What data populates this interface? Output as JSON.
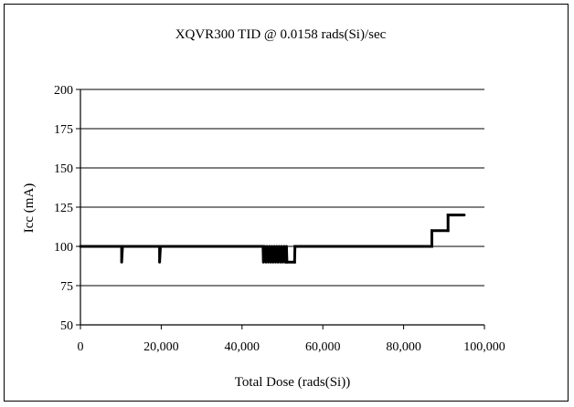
{
  "chart_data": {
    "type": "line",
    "title": "XQVR300 TID @ 0.0158 rads(Si)/sec",
    "xlabel": "Total Dose (rads(Si))",
    "ylabel": "Icc (mA)",
    "xlim": [
      0,
      100000
    ],
    "ylim": [
      50,
      200
    ],
    "x_ticks": [
      0,
      20000,
      40000,
      60000,
      80000,
      100000
    ],
    "x_tick_labels": [
      "0",
      "20,000",
      "40,000",
      "60,000",
      "80,000",
      "100,000"
    ],
    "y_ticks": [
      50,
      75,
      100,
      125,
      150,
      175,
      200
    ],
    "y_tick_labels": [
      "50",
      "75",
      "100",
      "125",
      "150",
      "175",
      "200"
    ],
    "grid": "horizontal",
    "legend": "none",
    "series": [
      {
        "color": "#000000",
        "points": [
          [
            0,
            100
          ],
          [
            10200,
            100
          ],
          [
            10200,
            90
          ],
          [
            10400,
            100
          ],
          [
            19600,
            100
          ],
          [
            19600,
            90
          ],
          [
            19800,
            100
          ],
          [
            45200,
            100
          ],
          [
            45300,
            90
          ],
          [
            45600,
            100
          ],
          [
            45900,
            90
          ],
          [
            46200,
            100
          ],
          [
            46500,
            90
          ],
          [
            46800,
            100
          ],
          [
            47100,
            90
          ],
          [
            47400,
            100
          ],
          [
            47700,
            90
          ],
          [
            48000,
            100
          ],
          [
            48300,
            90
          ],
          [
            48600,
            100
          ],
          [
            48900,
            90
          ],
          [
            49200,
            100
          ],
          [
            49500,
            90
          ],
          [
            49800,
            100
          ],
          [
            50100,
            90
          ],
          [
            50400,
            100
          ],
          [
            50700,
            90
          ],
          [
            51000,
            100
          ],
          [
            51100,
            90
          ],
          [
            53000,
            90
          ],
          [
            53100,
            100
          ],
          [
            87000,
            100
          ],
          [
            87000,
            110
          ],
          [
            91000,
            110
          ],
          [
            91000,
            120
          ],
          [
            95000,
            120
          ]
        ]
      }
    ]
  }
}
